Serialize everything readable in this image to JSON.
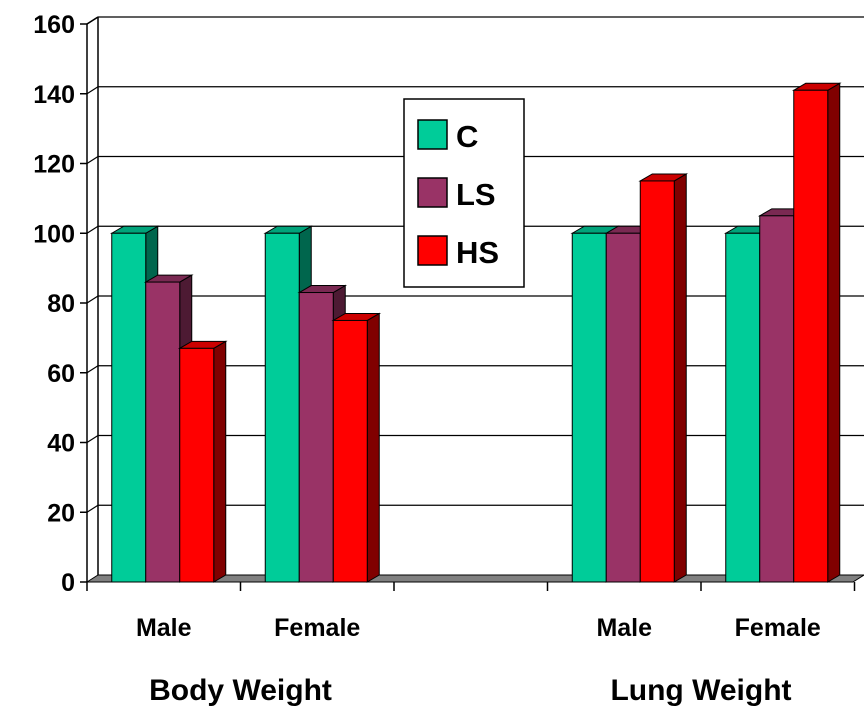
{
  "chart_data": {
    "type": "bar",
    "title": "",
    "xlabel": "",
    "ylabel": "",
    "ylim": [
      0,
      160
    ],
    "yticks": [
      0,
      20,
      40,
      60,
      80,
      100,
      120,
      140,
      160
    ],
    "grid": true,
    "three_d": true,
    "categories": [
      "Male",
      "Female",
      "",
      "Male",
      "Female"
    ],
    "groups": [
      {
        "label": "Body Weight",
        "categories": [
          "Male",
          "Female"
        ]
      },
      {
        "label": "Lung Weight",
        "categories": [
          "Male",
          "Female"
        ]
      }
    ],
    "series": [
      {
        "name": "C",
        "color": "#00CC99",
        "values": [
          100,
          100,
          null,
          100,
          100
        ]
      },
      {
        "name": "LS",
        "color": "#993366",
        "values": [
          86,
          83,
          null,
          100,
          105
        ]
      },
      {
        "name": "HS",
        "color": "#FF0000",
        "values": [
          67,
          75,
          null,
          115,
          141
        ]
      }
    ],
    "legend": {
      "placement": "top-center",
      "entries": [
        "C",
        "LS",
        "HS"
      ]
    }
  }
}
